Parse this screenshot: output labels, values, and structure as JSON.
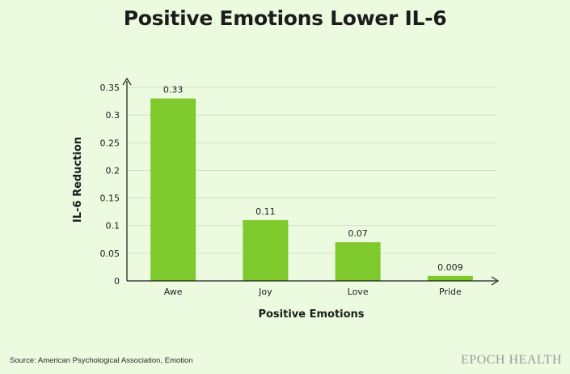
{
  "chart_data": {
    "type": "bar",
    "title": "Positive Emotions Lower IL-6",
    "xlabel": "Positive Emotions",
    "ylabel": "IL-6 Reduction",
    "categories": [
      "Awe",
      "Joy",
      "Love",
      "Pride"
    ],
    "values": [
      0.33,
      0.11,
      0.07,
      0.009
    ],
    "value_labels": [
      "0.33",
      "0.11",
      "0.07",
      "0.009"
    ],
    "ylim": [
      0,
      0.35
    ],
    "yticks": [
      "0",
      "0.05",
      "0.1",
      "0.15",
      "0.2",
      "0.25",
      "0.3",
      "0.35"
    ],
    "grid": true,
    "bar_color": "#7ec92c"
  },
  "source": "Source: American Psychological Association, Emotion",
  "brand": "EPOCH HEALTH"
}
